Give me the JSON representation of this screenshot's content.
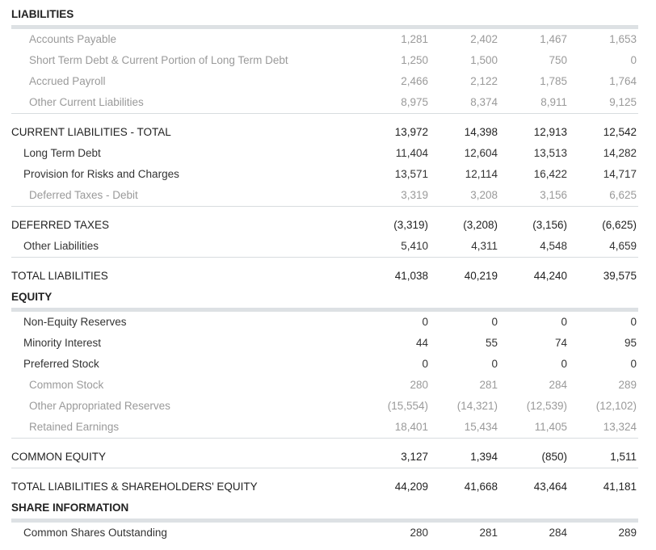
{
  "liabilities": {
    "title": "LIABILITIES",
    "rows": [
      {
        "label": "Accounts Payable",
        "values": [
          "1,281",
          "2,402",
          "1,467",
          "1,653"
        ]
      },
      {
        "label": "Short Term Debt & Current Portion of Long Term Debt",
        "values": [
          "1,250",
          "1,500",
          "750",
          "0"
        ]
      },
      {
        "label": "Accrued Payroll",
        "values": [
          "2,466",
          "2,122",
          "1,785",
          "1,764"
        ]
      },
      {
        "label": "Other Current Liabilities",
        "values": [
          "8,975",
          "8,374",
          "8,911",
          "9,125"
        ]
      },
      {
        "label": "CURRENT LIABILITIES - TOTAL",
        "values": [
          "13,972",
          "14,398",
          "12,913",
          "12,542"
        ]
      },
      {
        "label": "Long Term Debt",
        "values": [
          "11,404",
          "12,604",
          "13,513",
          "14,282"
        ]
      },
      {
        "label": "Provision for Risks and Charges",
        "values": [
          "13,571",
          "12,114",
          "16,422",
          "14,717"
        ]
      },
      {
        "label": "Deferred Taxes - Debit",
        "values": [
          "3,319",
          "3,208",
          "3,156",
          "6,625"
        ]
      },
      {
        "label": "DEFERRED TAXES",
        "values": [
          "(3,319)",
          "(3,208)",
          "(3,156)",
          "(6,625)"
        ]
      },
      {
        "label": "Other Liabilities",
        "values": [
          "5,410",
          "4,311",
          "4,548",
          "4,659"
        ]
      },
      {
        "label": "TOTAL LIABILITIES",
        "values": [
          "41,038",
          "40,219",
          "44,240",
          "39,575"
        ]
      }
    ]
  },
  "equity": {
    "title": "EQUITY",
    "rows": [
      {
        "label": "Non-Equity Reserves",
        "values": [
          "0",
          "0",
          "0",
          "0"
        ]
      },
      {
        "label": "Minority Interest",
        "values": [
          "44",
          "55",
          "74",
          "95"
        ]
      },
      {
        "label": "Preferred Stock",
        "values": [
          "0",
          "0",
          "0",
          "0"
        ]
      },
      {
        "label": "Common Stock",
        "values": [
          "280",
          "281",
          "284",
          "289"
        ]
      },
      {
        "label": "Other Appropriated Reserves",
        "values": [
          "(15,554)",
          "(14,321)",
          "(12,539)",
          "(12,102)"
        ]
      },
      {
        "label": "Retained Earnings",
        "values": [
          "18,401",
          "15,434",
          "11,405",
          "13,324"
        ]
      },
      {
        "label": "COMMON EQUITY",
        "values": [
          "3,127",
          "1,394",
          "(850)",
          "1,511"
        ]
      },
      {
        "label": "TOTAL LIABILITIES & SHAREHOLDERS' EQUITY",
        "values": [
          "44,209",
          "41,668",
          "43,464",
          "41,181"
        ]
      }
    ]
  },
  "share_information": {
    "title": "SHARE INFORMATION",
    "rows": [
      {
        "label": "Common Shares Outstanding",
        "values": [
          "280",
          "281",
          "284",
          "289"
        ]
      }
    ]
  }
}
